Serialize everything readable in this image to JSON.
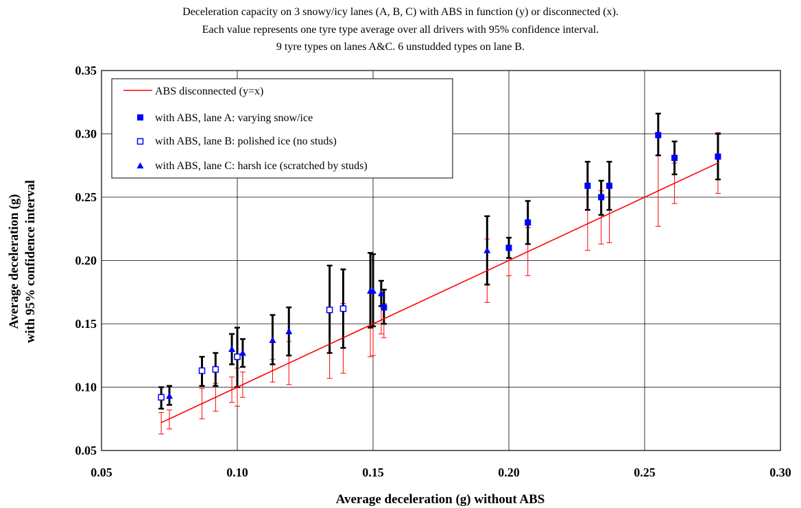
{
  "chart_data": {
    "type": "scatter",
    "title_lines": [
      "Deceleration capacity on 3 snowy/icy lanes (A, B, C) with ABS in function (y) or disconnected (x).",
      "Each value represents one tyre type average over all drivers with 95% confidence interval.",
      "9 tyre types on lanes A&C. 6 unstudded types on lane B."
    ],
    "xlabel": "Average deceleration  (g) without ABS",
    "ylabel_lines": [
      "Average deceleration  (g)",
      "with 95% confidence interval"
    ],
    "xlim": [
      0.05,
      0.3
    ],
    "ylim": [
      0.05,
      0.35
    ],
    "x_ticks": [
      "0.05",
      "0.10",
      "0.15",
      "0.20",
      "0.25",
      "0.30"
    ],
    "y_ticks": [
      "0.05",
      "0.10",
      "0.15",
      "0.20",
      "0.25",
      "0.30",
      "0.35"
    ],
    "grid": true,
    "legend_position": "top-left",
    "colors": {
      "line": "#ff0000",
      "markers": "#0000ff",
      "abs_bars": "#000000",
      "noabs_bars": "#ff0000"
    },
    "series": [
      {
        "name": "ABS disconnected (y=x)",
        "kind": "line",
        "x": [
          0.072,
          0.277
        ],
        "y": [
          0.072,
          0.277
        ]
      },
      {
        "name": "with ABS, lane A: varying snow/ice",
        "marker": "filled-square",
        "points": [
          {
            "x": 0.154,
            "y": 0.163,
            "y_lo": 0.15,
            "y_hi": 0.177,
            "x_lo": 0.139,
            "x_hi": 0.166
          },
          {
            "x": 0.2,
            "y": 0.21,
            "y_lo": 0.202,
            "y_hi": 0.218,
            "x_lo": 0.188,
            "x_hi": 0.212
          },
          {
            "x": 0.207,
            "y": 0.23,
            "y_lo": 0.213,
            "y_hi": 0.247,
            "x_lo": 0.188,
            "x_hi": 0.226
          },
          {
            "x": 0.229,
            "y": 0.259,
            "y_lo": 0.24,
            "y_hi": 0.278,
            "x_lo": 0.208,
            "x_hi": 0.25
          },
          {
            "x": 0.234,
            "y": 0.25,
            "y_lo": 0.236,
            "y_hi": 0.263,
            "x_lo": 0.213,
            "x_hi": 0.255
          },
          {
            "x": 0.237,
            "y": 0.259,
            "y_lo": 0.24,
            "y_hi": 0.278,
            "x_lo": 0.214,
            "x_hi": 0.26
          },
          {
            "x": 0.255,
            "y": 0.299,
            "y_lo": 0.283,
            "y_hi": 0.316,
            "x_lo": 0.227,
            "x_hi": 0.283
          },
          {
            "x": 0.261,
            "y": 0.281,
            "y_lo": 0.268,
            "y_hi": 0.294,
            "x_lo": 0.245,
            "x_hi": 0.277
          },
          {
            "x": 0.277,
            "y": 0.282,
            "y_lo": 0.264,
            "y_hi": 0.3,
            "x_lo": 0.253,
            "x_hi": 0.301
          }
        ]
      },
      {
        "name": "with ABS, lane B: polished ice (no studs)",
        "marker": "open-square",
        "points": [
          {
            "x": 0.072,
            "y": 0.092,
            "y_lo": 0.083,
            "y_hi": 0.1,
            "x_lo": 0.063,
            "x_hi": 0.08
          },
          {
            "x": 0.087,
            "y": 0.113,
            "y_lo": 0.101,
            "y_hi": 0.124,
            "x_lo": 0.075,
            "x_hi": 0.099
          },
          {
            "x": 0.092,
            "y": 0.114,
            "y_lo": 0.101,
            "y_hi": 0.127,
            "x_lo": 0.081,
            "x_hi": 0.103
          },
          {
            "x": 0.1,
            "y": 0.124,
            "y_lo": 0.1,
            "y_hi": 0.147,
            "x_lo": 0.085,
            "x_hi": 0.115
          },
          {
            "x": 0.134,
            "y": 0.161,
            "y_lo": 0.127,
            "y_hi": 0.196,
            "x_lo": 0.107,
            "x_hi": 0.161
          },
          {
            "x": 0.139,
            "y": 0.162,
            "y_lo": 0.131,
            "y_hi": 0.193,
            "x_lo": 0.111,
            "x_hi": 0.166
          }
        ]
      },
      {
        "name": "with ABS, lane C: harsh ice (scratched by studs)",
        "marker": "filled-triangle",
        "points": [
          {
            "x": 0.075,
            "y": 0.093,
            "y_lo": 0.086,
            "y_hi": 0.101,
            "x_lo": 0.067,
            "x_hi": 0.082
          },
          {
            "x": 0.098,
            "y": 0.13,
            "y_lo": 0.118,
            "y_hi": 0.142,
            "x_lo": 0.088,
            "x_hi": 0.108
          },
          {
            "x": 0.102,
            "y": 0.127,
            "y_lo": 0.116,
            "y_hi": 0.138,
            "x_lo": 0.092,
            "x_hi": 0.112
          },
          {
            "x": 0.113,
            "y": 0.137,
            "y_lo": 0.118,
            "y_hi": 0.157,
            "x_lo": 0.104,
            "x_hi": 0.122
          },
          {
            "x": 0.119,
            "y": 0.144,
            "y_lo": 0.125,
            "y_hi": 0.163,
            "x_lo": 0.102,
            "x_hi": 0.136
          },
          {
            "x": 0.149,
            "y": 0.176,
            "y_lo": 0.147,
            "y_hi": 0.206,
            "x_lo": 0.124,
            "x_hi": 0.174
          },
          {
            "x": 0.15,
            "y": 0.176,
            "y_lo": 0.148,
            "y_hi": 0.205,
            "x_lo": 0.125,
            "x_hi": 0.175
          },
          {
            "x": 0.153,
            "y": 0.174,
            "y_lo": 0.164,
            "y_hi": 0.184,
            "x_lo": 0.142,
            "x_hi": 0.164
          },
          {
            "x": 0.192,
            "y": 0.208,
            "y_lo": 0.181,
            "y_hi": 0.235,
            "x_lo": 0.167,
            "x_hi": 0.217
          }
        ]
      }
    ]
  }
}
